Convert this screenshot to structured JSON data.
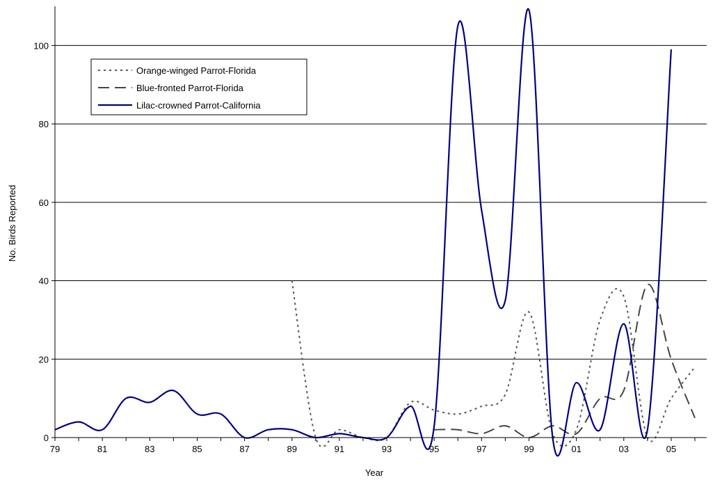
{
  "chart_data": {
    "type": "line",
    "xlabel": "Year",
    "ylabel": "No. Birds Reported",
    "xlim": [
      1979,
      2006.5
    ],
    "ylim": [
      0,
      110
    ],
    "y_ticks": [
      0,
      20,
      40,
      60,
      80,
      100
    ],
    "x_ticks": [
      1979,
      1981,
      1983,
      1985,
      1987,
      1989,
      1991,
      1993,
      1995,
      1997,
      1999,
      2001,
      2003,
      2005
    ],
    "x_tick_labels": [
      "79",
      "81",
      "83",
      "85",
      "87",
      "89",
      "91",
      "93",
      "95",
      "97",
      "99",
      "01",
      "03",
      "05"
    ],
    "grid": "horizontal",
    "legend_position": "top-left",
    "series": [
      {
        "name": "Orange-winged Parrot-Florida",
        "style": "dotted",
        "color": "#555555",
        "x": [
          1989,
          1990,
          1991,
          1992,
          1993,
          1994,
          1995,
          1996,
          1997,
          1998,
          1999,
          2000,
          2001,
          2002,
          2003,
          2004,
          2005,
          2006
        ],
        "y": [
          40,
          0,
          2,
          0,
          0,
          9,
          7,
          6,
          8,
          11,
          32,
          1,
          2,
          30,
          36,
          0,
          10,
          18
        ]
      },
      {
        "name": "Blue-fronted Parrot-Florida",
        "style": "dashed",
        "color": "#444444",
        "x": [
          1995,
          1996,
          1997,
          1998,
          1999,
          2000,
          2001,
          2002,
          2003,
          2004,
          2005,
          2006
        ],
        "y": [
          2,
          2,
          1,
          3,
          0,
          3,
          1,
          10,
          12,
          39,
          20,
          5
        ]
      },
      {
        "name": "Lilac-crowned Parrot-California",
        "style": "solid",
        "color": "#000080",
        "x": [
          1979,
          1980,
          1981,
          1982,
          1983,
          1984,
          1985,
          1986,
          1987,
          1988,
          1989,
          1990,
          1991,
          1992,
          1993,
          1994,
          1995,
          1996,
          1997,
          1998,
          1999,
          2000,
          2001,
          2002,
          2003,
          2004,
          2005
        ],
        "y": [
          2,
          4,
          2,
          10,
          9,
          12,
          6,
          6,
          0,
          2,
          2,
          0,
          1,
          0,
          0,
          8,
          3,
          105,
          58,
          35,
          109,
          0,
          14,
          2,
          29,
          2,
          99
        ]
      }
    ]
  }
}
